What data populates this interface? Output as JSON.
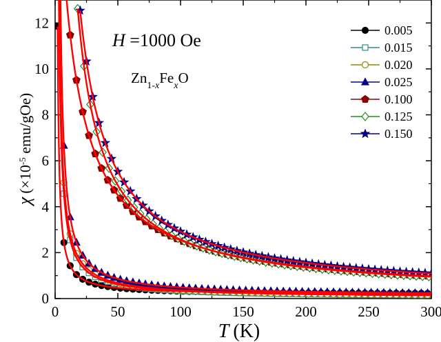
{
  "chart_data": {
    "type": "scatter",
    "xlabel_var": "T",
    "xlabel_unit": "(K)",
    "ylabel_var": "χ",
    "ylabel_pre": "(×10",
    "ylabel_exp": "-5",
    "ylabel_post": " emu/gOe)",
    "xlim": [
      0,
      300
    ],
    "ylim": [
      0,
      13
    ],
    "x_ticks": [
      0,
      50,
      100,
      150,
      200,
      250,
      300
    ],
    "y_ticks": [
      0,
      2,
      4,
      6,
      8,
      10,
      12
    ],
    "annotation_field": {
      "var": "H",
      "rest": " =1000 Oe"
    },
    "annotation_formula": {
      "a": "Zn",
      "sub1": "1-",
      "x1": "x",
      "b": "Fe",
      "x2": "x",
      "c": "O"
    },
    "fit_color": "#ff0000",
    "legend_position": "top-right",
    "series": [
      {
        "name": "0.005",
        "color": "#000000",
        "marker": "circle-filled",
        "chi0": 0.18,
        "C": 14,
        "theta": 0.8,
        "x0": 2,
        "step": 5
      },
      {
        "name": "0.015",
        "color": "#2e8b8b",
        "marker": "square-open",
        "chi0": 0.05,
        "C": 28,
        "theta": 0.8,
        "x0": 2,
        "step": 5
      },
      {
        "name": "0.020",
        "color": "#8b8b00",
        "marker": "circle-open",
        "chi0": 0.05,
        "C": 31,
        "theta": 0.8,
        "x0": 2,
        "step": 5
      },
      {
        "name": "0.025",
        "color": "#00008b",
        "marker": "triangle-filled",
        "chi0": 0.12,
        "C": 36,
        "theta": 1.5,
        "x0": 2,
        "step": 5
      },
      {
        "name": "0.100",
        "color": "#8b0000",
        "marker": "pentagon-filled",
        "chi0": 0.1,
        "C": 273,
        "theta": -12,
        "x0": 7,
        "step": 5
      },
      {
        "name": "0.125",
        "color": "#228b22",
        "marker": "diamond-open",
        "chi0": 0.12,
        "C": 250,
        "theta": -2,
        "x0": 18,
        "step": 5
      },
      {
        "name": "0.150",
        "color": "#00008b",
        "marker": "star-filled",
        "chi0": 0.15,
        "C": 285,
        "theta": -3,
        "x0": 20,
        "step": 5
      }
    ]
  }
}
